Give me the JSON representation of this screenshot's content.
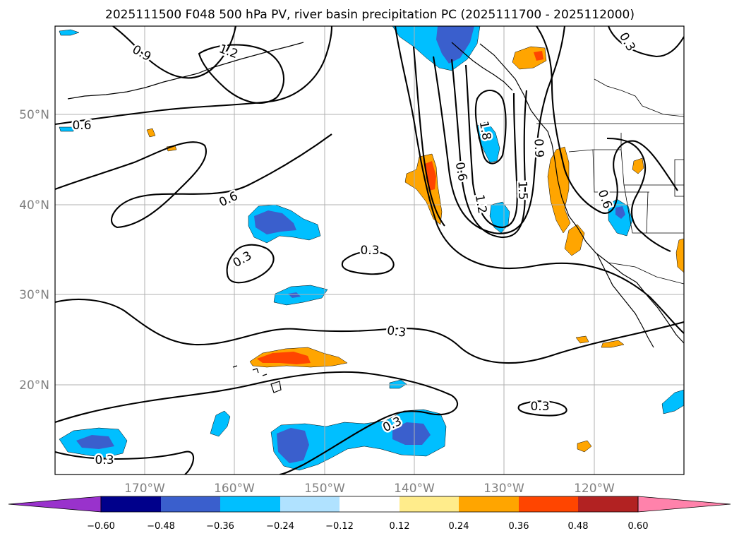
{
  "title": "2025111500 F048 500 hPa PV, river basin precipitation PC (2025111700 - 2025112000)",
  "lat_labels": [
    "50°N",
    "40°N",
    "30°N",
    "20°N"
  ],
  "lon_labels": [
    "170°W",
    "160°W",
    "150°W",
    "140°W",
    "130°W",
    "120°W"
  ],
  "contour_labels": [
    "0.9",
    "1.2",
    "0.6",
    "0.6",
    "0.3",
    "0.3",
    "0.3",
    "0.3",
    "0.3",
    "0.3",
    "0.6",
    "1.2",
    "1.8",
    "1.5",
    "0.9",
    "0.6",
    "0.3"
  ],
  "colorbar": {
    "ticks": [
      "−0.60",
      "−0.48",
      "−0.36",
      "−0.24",
      "−0.12",
      "0.12",
      "0.24",
      "0.36",
      "0.48",
      "0.60"
    ],
    "colors": [
      "#9932cc",
      "#00008b",
      "#3a5fcd",
      "#00bfff",
      "#b0e2ff",
      "#ffffff",
      "#ffec8b",
      "#ffa500",
      "#ff4500",
      "#b22222",
      "#ff82ab"
    ]
  },
  "colors": {
    "neg_light": "#00bfff",
    "neg_dark": "#3a5fcd",
    "neg_darkest": "#483d8b",
    "pos_orange": "#ffa500",
    "pos_red": "#ff4500"
  }
}
